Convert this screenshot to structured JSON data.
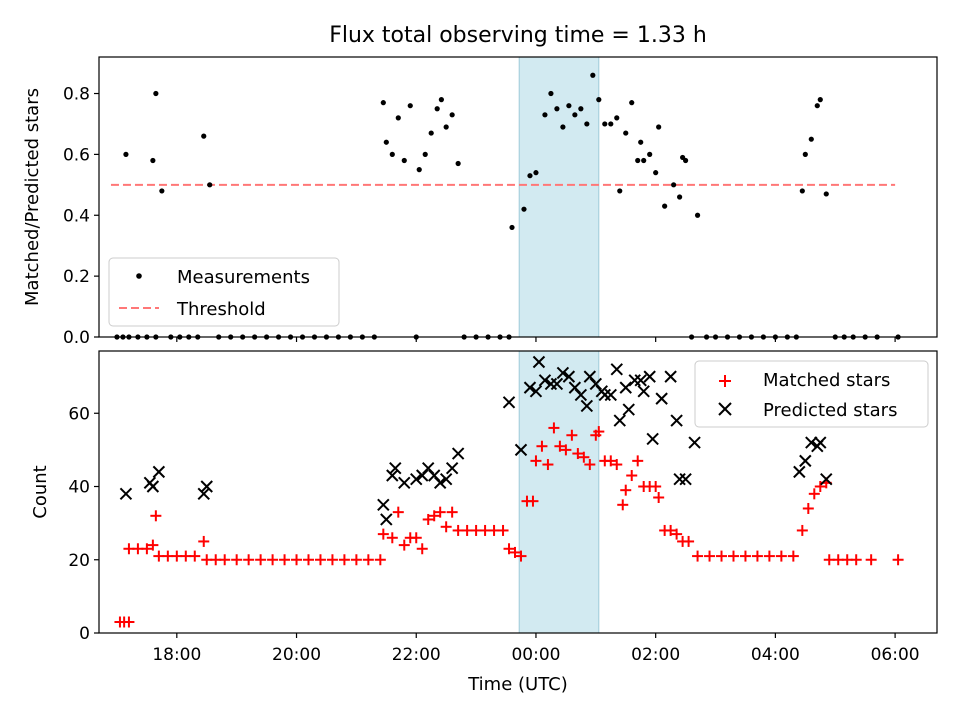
{
  "chart_data": [
    {
      "type": "scatter",
      "title": "Flux total observing time = 1.33 h",
      "xlabel": "",
      "ylabel": "Matched/Predicted stars",
      "xlim": [
        16.7,
        30.7
      ],
      "ylim": [
        0,
        0.92
      ],
      "yticks": [
        0.0,
        0.2,
        0.4,
        0.6,
        0.8
      ],
      "highlight_span": [
        23.72,
        25.05
      ],
      "legend_position": "lower-left",
      "series": [
        {
          "name": "Measurements",
          "marker": "dot",
          "color": "#000000",
          "points": [
            [
              17.0,
              0.0
            ],
            [
              17.1,
              0.0
            ],
            [
              17.2,
              0.0
            ],
            [
              17.35,
              0.0
            ],
            [
              17.5,
              0.0
            ],
            [
              17.65,
              0.0
            ],
            [
              17.15,
              0.6
            ],
            [
              17.6,
              0.58
            ],
            [
              17.65,
              0.8
            ],
            [
              17.75,
              0.48
            ],
            [
              17.9,
              0.0
            ],
            [
              18.05,
              0.0
            ],
            [
              18.2,
              0.0
            ],
            [
              18.35,
              0.0
            ],
            [
              18.45,
              0.66
            ],
            [
              18.55,
              0.5
            ],
            [
              18.7,
              0.0
            ],
            [
              18.9,
              0.0
            ],
            [
              19.1,
              0.0
            ],
            [
              19.3,
              0.0
            ],
            [
              19.5,
              0.0
            ],
            [
              19.7,
              0.0
            ],
            [
              19.9,
              0.0
            ],
            [
              20.1,
              0.0
            ],
            [
              20.3,
              0.0
            ],
            [
              20.5,
              0.0
            ],
            [
              20.7,
              0.0
            ],
            [
              20.9,
              0.0
            ],
            [
              21.1,
              0.0
            ],
            [
              21.3,
              0.0
            ],
            [
              21.45,
              0.77
            ],
            [
              21.5,
              0.64
            ],
            [
              21.6,
              0.6
            ],
            [
              21.7,
              0.72
            ],
            [
              21.8,
              0.58
            ],
            [
              21.9,
              0.76
            ],
            [
              22.0,
              0.0
            ],
            [
              22.05,
              0.55
            ],
            [
              22.15,
              0.6
            ],
            [
              22.25,
              0.67
            ],
            [
              22.35,
              0.75
            ],
            [
              22.42,
              0.78
            ],
            [
              22.5,
              0.69
            ],
            [
              22.6,
              0.73
            ],
            [
              22.7,
              0.57
            ],
            [
              22.8,
              0.0
            ],
            [
              23.0,
              0.0
            ],
            [
              23.2,
              0.0
            ],
            [
              23.4,
              0.0
            ],
            [
              23.55,
              0.0
            ],
            [
              23.6,
              0.36
            ],
            [
              23.8,
              0.42
            ],
            [
              23.9,
              0.53
            ],
            [
              24.0,
              0.54
            ],
            [
              24.15,
              0.73
            ],
            [
              24.25,
              0.8
            ],
            [
              24.35,
              0.75
            ],
            [
              24.45,
              0.69
            ],
            [
              24.55,
              0.76
            ],
            [
              24.65,
              0.73
            ],
            [
              24.75,
              0.75
            ],
            [
              24.85,
              0.7
            ],
            [
              24.95,
              0.86
            ],
            [
              25.05,
              0.78
            ],
            [
              25.15,
              0.7
            ],
            [
              25.25,
              0.7
            ],
            [
              25.35,
              0.72
            ],
            [
              25.4,
              0.48
            ],
            [
              25.5,
              0.67
            ],
            [
              25.6,
              0.77
            ],
            [
              25.7,
              0.58
            ],
            [
              25.75,
              0.64
            ],
            [
              25.8,
              0.58
            ],
            [
              25.9,
              0.6
            ],
            [
              26.0,
              0.54
            ],
            [
              26.05,
              0.69
            ],
            [
              26.15,
              0.43
            ],
            [
              26.3,
              0.5
            ],
            [
              26.4,
              0.46
            ],
            [
              26.45,
              0.59
            ],
            [
              26.5,
              0.58
            ],
            [
              26.6,
              0.0
            ],
            [
              26.7,
              0.4
            ],
            [
              26.85,
              0.0
            ],
            [
              27.0,
              0.0
            ],
            [
              27.2,
              0.0
            ],
            [
              27.4,
              0.0
            ],
            [
              27.6,
              0.0
            ],
            [
              27.8,
              0.0
            ],
            [
              28.0,
              0.0
            ],
            [
              28.2,
              0.0
            ],
            [
              28.35,
              0.0
            ],
            [
              28.45,
              0.48
            ],
            [
              28.5,
              0.6
            ],
            [
              28.6,
              0.65
            ],
            [
              28.7,
              0.76
            ],
            [
              28.75,
              0.78
            ],
            [
              28.85,
              0.47
            ],
            [
              29.0,
              0.0
            ],
            [
              29.15,
              0.0
            ],
            [
              29.3,
              0.0
            ],
            [
              29.5,
              0.0
            ],
            [
              29.7,
              0.0
            ],
            [
              30.05,
              0.0
            ]
          ]
        },
        {
          "name": "Threshold",
          "style": "dashed",
          "color": "#ff7777",
          "x": [
            16.9,
            30.0
          ],
          "values": [
            0.5,
            0.5
          ]
        }
      ]
    },
    {
      "type": "scatter",
      "title": "",
      "xlabel": "Time (UTC)",
      "ylabel": "Count",
      "xlim": [
        16.7,
        30.7
      ],
      "ylim": [
        0,
        77
      ],
      "yticks": [
        0,
        20,
        40,
        60
      ],
      "xticks": [
        18,
        20,
        22,
        24,
        26,
        28,
        30
      ],
      "xtick_labels": [
        "18:00",
        "20:00",
        "22:00",
        "00:00",
        "02:00",
        "04:00",
        "06:00"
      ],
      "highlight_span": [
        23.72,
        25.05
      ],
      "legend_position": "top-right",
      "series": [
        {
          "name": "Matched stars",
          "marker": "plus",
          "color": "#ff0000",
          "points": [
            [
              17.05,
              3
            ],
            [
              17.12,
              3
            ],
            [
              17.2,
              3
            ],
            [
              17.2,
              23
            ],
            [
              17.35,
              23
            ],
            [
              17.5,
              23
            ],
            [
              17.6,
              24
            ],
            [
              17.65,
              32
            ],
            [
              17.7,
              21
            ],
            [
              17.85,
              21
            ],
            [
              18.0,
              21
            ],
            [
              18.15,
              21
            ],
            [
              18.3,
              21
            ],
            [
              18.45,
              25
            ],
            [
              18.5,
              20
            ],
            [
              18.65,
              20
            ],
            [
              18.8,
              20
            ],
            [
              19.0,
              20
            ],
            [
              19.2,
              20
            ],
            [
              19.4,
              20
            ],
            [
              19.6,
              20
            ],
            [
              19.8,
              20
            ],
            [
              20.0,
              20
            ],
            [
              20.2,
              20
            ],
            [
              20.4,
              20
            ],
            [
              20.6,
              20
            ],
            [
              20.8,
              20
            ],
            [
              21.0,
              20
            ],
            [
              21.2,
              20
            ],
            [
              21.4,
              20
            ],
            [
              21.45,
              27
            ],
            [
              21.6,
              26
            ],
            [
              21.7,
              33
            ],
            [
              21.8,
              24
            ],
            [
              21.9,
              26
            ],
            [
              22.0,
              26
            ],
            [
              22.1,
              23
            ],
            [
              22.2,
              31
            ],
            [
              22.3,
              32
            ],
            [
              22.4,
              33
            ],
            [
              22.5,
              29
            ],
            [
              22.6,
              33
            ],
            [
              22.7,
              28
            ],
            [
              22.85,
              28
            ],
            [
              23.0,
              28
            ],
            [
              23.15,
              28
            ],
            [
              23.3,
              28
            ],
            [
              23.45,
              28
            ],
            [
              23.55,
              23
            ],
            [
              23.65,
              22
            ],
            [
              23.75,
              21
            ],
            [
              23.85,
              36
            ],
            [
              23.95,
              36
            ],
            [
              24.0,
              47
            ],
            [
              24.1,
              51
            ],
            [
              24.2,
              46
            ],
            [
              24.3,
              56
            ],
            [
              24.4,
              51
            ],
            [
              24.5,
              50
            ],
            [
              24.6,
              54
            ],
            [
              24.7,
              49
            ],
            [
              24.8,
              48
            ],
            [
              24.9,
              46
            ],
            [
              25.0,
              54
            ],
            [
              25.05,
              55
            ],
            [
              25.15,
              47
            ],
            [
              25.25,
              47
            ],
            [
              25.35,
              46
            ],
            [
              25.45,
              35
            ],
            [
              25.5,
              39
            ],
            [
              25.6,
              43
            ],
            [
              25.7,
              47
            ],
            [
              25.8,
              40
            ],
            [
              25.9,
              40
            ],
            [
              26.0,
              40
            ],
            [
              26.05,
              37
            ],
            [
              26.15,
              28
            ],
            [
              26.25,
              28
            ],
            [
              26.35,
              27
            ],
            [
              26.45,
              25
            ],
            [
              26.55,
              25
            ],
            [
              26.7,
              21
            ],
            [
              26.9,
              21
            ],
            [
              27.1,
              21
            ],
            [
              27.3,
              21
            ],
            [
              27.5,
              21
            ],
            [
              27.7,
              21
            ],
            [
              27.9,
              21
            ],
            [
              28.1,
              21
            ],
            [
              28.3,
              21
            ],
            [
              28.45,
              28
            ],
            [
              28.55,
              34
            ],
            [
              28.65,
              38
            ],
            [
              28.75,
              40
            ],
            [
              28.85,
              41
            ],
            [
              28.9,
              20
            ],
            [
              29.05,
              20
            ],
            [
              29.2,
              20
            ],
            [
              29.35,
              20
            ],
            [
              29.6,
              20
            ],
            [
              30.05,
              20
            ]
          ]
        },
        {
          "name": "Predicted stars",
          "marker": "x",
          "color": "#000000",
          "points": [
            [
              17.15,
              38
            ],
            [
              17.55,
              41
            ],
            [
              17.6,
              40
            ],
            [
              17.7,
              44
            ],
            [
              18.45,
              38
            ],
            [
              18.5,
              40
            ],
            [
              21.45,
              35
            ],
            [
              21.5,
              31
            ],
            [
              21.6,
              43
            ],
            [
              21.65,
              45
            ],
            [
              21.8,
              41
            ],
            [
              22.0,
              42
            ],
            [
              22.1,
              43
            ],
            [
              22.2,
              45
            ],
            [
              22.3,
              43
            ],
            [
              22.4,
              41
            ],
            [
              22.5,
              42
            ],
            [
              22.6,
              45
            ],
            [
              22.7,
              49
            ],
            [
              23.55,
              63
            ],
            [
              23.75,
              50
            ],
            [
              23.9,
              67
            ],
            [
              24.0,
              66
            ],
            [
              24.05,
              74
            ],
            [
              24.15,
              69
            ],
            [
              24.25,
              68
            ],
            [
              24.35,
              68
            ],
            [
              24.45,
              71
            ],
            [
              24.55,
              70
            ],
            [
              24.65,
              67
            ],
            [
              24.75,
              65
            ],
            [
              24.85,
              62
            ],
            [
              24.9,
              70
            ],
            [
              25.0,
              68
            ],
            [
              25.1,
              66
            ],
            [
              25.15,
              65
            ],
            [
              25.25,
              65
            ],
            [
              25.35,
              72
            ],
            [
              25.4,
              58
            ],
            [
              25.5,
              67
            ],
            [
              25.55,
              61
            ],
            [
              25.65,
              69
            ],
            [
              25.75,
              69
            ],
            [
              25.8,
              66
            ],
            [
              25.9,
              70
            ],
            [
              25.95,
              53
            ],
            [
              26.1,
              64
            ],
            [
              26.25,
              70
            ],
            [
              26.35,
              58
            ],
            [
              26.4,
              42
            ],
            [
              26.5,
              42
            ],
            [
              26.65,
              52
            ],
            [
              28.4,
              44
            ],
            [
              28.5,
              47
            ],
            [
              28.6,
              52
            ],
            [
              28.7,
              51
            ],
            [
              28.75,
              52
            ],
            [
              28.85,
              42
            ]
          ]
        }
      ]
    }
  ]
}
